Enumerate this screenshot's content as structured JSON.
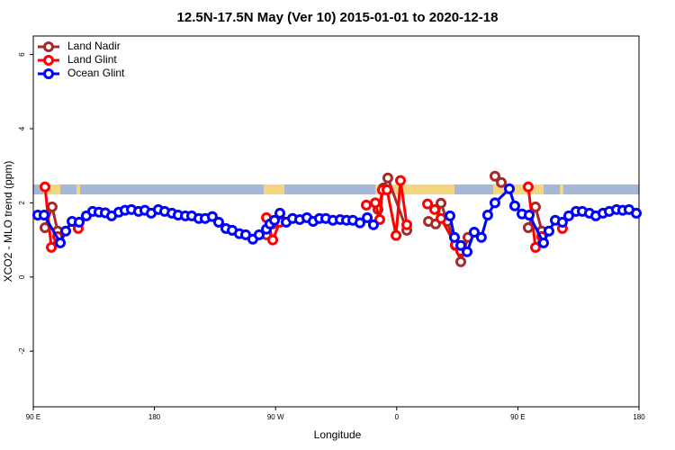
{
  "chart_data": {
    "type": "line",
    "title": "12.5N-17.5N May (Ver 10)   2015-01-01 to 2020-12-18",
    "x_label": "Longitude",
    "y_label": "XCO2 - MLO trend (ppm)",
    "xlim": [
      90,
      540
    ],
    "xticks": [
      {
        "value": 90,
        "label": "90 E"
      },
      {
        "value": 180,
        "label": "180"
      },
      {
        "value": 270,
        "label": "90 W"
      },
      {
        "value": 360,
        "label": "0"
      },
      {
        "value": 450,
        "label": "90 E"
      },
      {
        "value": 540,
        "label": "180"
      }
    ],
    "ylim": [
      -3.5,
      6.5
    ],
    "yticks": [
      -2,
      0,
      2,
      4,
      6
    ],
    "legend": "top-left",
    "series": [
      {
        "name": "Land Nadir",
        "color": "#a52a2a",
        "x": [
          98.7,
          104.0,
          108.1,
          null,
          263.2,
          267.9,
          273.2,
          null,
          346.1,
          350.1,
          353.4,
          367.5,
          null,
          383.6,
          388.9,
          392.9,
          397.6,
          403.6,
          407.6,
          412.9,
          null,
          433.0,
          437.7,
          null,
          457.7,
          463.1,
          467.8
        ],
        "values": [
          1.33,
          1.89,
          1.24,
          null,
          1.14,
          1.43,
          1.58,
          null,
          1.82,
          2.4,
          2.67,
          1.26,
          null,
          1.5,
          1.43,
          1.99,
          1.5,
          0.85,
          0.41,
          1.07,
          null,
          2.72,
          2.55,
          null,
          1.33,
          1.89,
          1.24
        ]
      },
      {
        "name": "Land Glint",
        "color": "#ff0000",
        "x": [
          98.7,
          103.4,
          108.1,
          null,
          123.4,
          null,
          263.2,
          267.9,
          273.2,
          null,
          337.4,
          344.1,
          347.4,
          349.4,
          352.8,
          359.5,
          362.8,
          367.5,
          null,
          382.9,
          388.2,
          392.9,
          403.6,
          407.6,
          null,
          457.7,
          463.1,
          467.8,
          null,
          483.1
        ],
        "values": [
          2.43,
          0.8,
          1.09,
          null,
          1.31,
          null,
          1.6,
          1.0,
          1.48,
          null,
          1.94,
          2.0,
          1.55,
          2.35,
          2.35,
          1.12,
          2.6,
          1.41,
          null,
          1.97,
          1.82,
          1.58,
          0.87,
          0.7,
          null,
          2.43,
          0.8,
          1.09,
          null,
          1.31
        ]
      },
      {
        "name": "Ocean Glint",
        "color": "#0000ff",
        "x": [
          93.3,
          98.0,
          110.1,
          114.1,
          118.8,
          124.1,
          129.4,
          134.1,
          138.8,
          143.5,
          148.2,
          153.5,
          158.2,
          162.9,
          168.2,
          172.9,
          177.6,
          182.9,
          187.6,
          193.0,
          197.6,
          203.0,
          207.7,
          213.0,
          217.7,
          223.0,
          227.7,
          233.1,
          237.8,
          243.1,
          247.8,
          253.1,
          257.8,
          263.2,
          265.8,
          269.2,
          273.2,
          277.9,
          282.6,
          287.9,
          293.3,
          297.9,
          302.6,
          307.3,
          312.6,
          318.0,
          322.7,
          327.4,
          332.7,
          338.1,
          342.7,
          null,
          399.6,
          402.9,
          407.6,
          412.3,
          417.6,
          422.9,
          427.6,
          433.0,
          443.7,
          447.7,
          453.1,
          458.4,
          469.1,
          473.1,
          477.8,
          483.1,
          487.8,
          493.2,
          497.9,
          503.2,
          507.9,
          513.2,
          517.9,
          523.3,
          527.9,
          532.6,
          538.0
        ],
        "values": [
          1.67,
          1.67,
          0.92,
          1.24,
          1.5,
          1.48,
          1.65,
          1.77,
          1.75,
          1.73,
          1.65,
          1.75,
          1.8,
          1.82,
          1.77,
          1.8,
          1.72,
          1.82,
          1.77,
          1.72,
          1.67,
          1.65,
          1.65,
          1.58,
          1.58,
          1.63,
          1.48,
          1.31,
          1.26,
          1.17,
          1.14,
          1.02,
          1.14,
          1.29,
          1.43,
          1.53,
          1.72,
          1.48,
          1.58,
          1.55,
          1.6,
          1.5,
          1.58,
          1.58,
          1.53,
          1.55,
          1.53,
          1.53,
          1.46,
          1.6,
          1.41,
          null,
          1.65,
          1.07,
          0.85,
          0.68,
          1.21,
          1.07,
          1.67,
          2.0,
          2.38,
          1.92,
          1.7,
          1.67,
          0.92,
          1.24,
          1.53,
          1.48,
          1.65,
          1.77,
          1.77,
          1.72,
          1.65,
          1.72,
          1.77,
          1.82,
          1.8,
          1.82,
          1.72
        ]
      }
    ]
  }
}
